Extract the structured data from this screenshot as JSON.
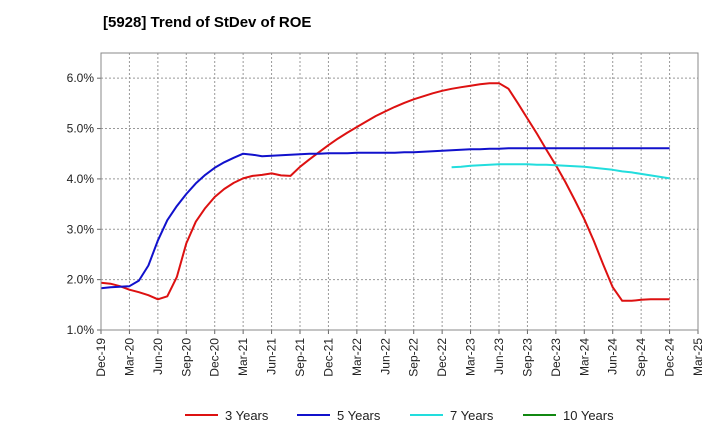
{
  "chart_data": {
    "type": "line",
    "title": "[5928]  Trend of StDev of ROE",
    "xlabel": "",
    "ylabel": "",
    "x_ticks": [
      "Dec-19",
      "Mar-20",
      "Jun-20",
      "Sep-20",
      "Dec-20",
      "Mar-21",
      "Jun-21",
      "Sep-21",
      "Dec-21",
      "Mar-22",
      "Jun-22",
      "Sep-22",
      "Dec-22",
      "Mar-23",
      "Jun-23",
      "Sep-23",
      "Dec-23",
      "Mar-24",
      "Jun-24",
      "Sep-24",
      "Dec-24",
      "Mar-25"
    ],
    "y_ticks": [
      "1.0%",
      "2.0%",
      "3.0%",
      "4.0%",
      "5.0%",
      "6.0%"
    ],
    "ylim": [
      1.0,
      6.5
    ],
    "y_unit": "%",
    "grid": true,
    "legend_position": "bottom",
    "series": [
      {
        "name": "3 Years",
        "color": "#dd1111",
        "points": [
          [
            "Dec-19",
            1.94
          ],
          [
            "Jan-20",
            1.92
          ],
          [
            "Feb-20",
            1.87
          ],
          [
            "Mar-20",
            1.8
          ],
          [
            "Apr-20",
            1.75
          ],
          [
            "May-20",
            1.69
          ],
          [
            "Jun-20",
            1.61
          ],
          [
            "Jul-20",
            1.67
          ],
          [
            "Aug-20",
            2.05
          ],
          [
            "Sep-20",
            2.72
          ],
          [
            "Oct-20",
            3.15
          ],
          [
            "Nov-20",
            3.42
          ],
          [
            "Dec-20",
            3.64
          ],
          [
            "Jan-21",
            3.8
          ],
          [
            "Feb-21",
            3.92
          ],
          [
            "Mar-21",
            4.01
          ],
          [
            "Apr-21",
            4.06
          ],
          [
            "May-21",
            4.08
          ],
          [
            "Jun-21",
            4.11
          ],
          [
            "Jul-21",
            4.07
          ],
          [
            "Aug-21",
            4.06
          ],
          [
            "Sep-21",
            4.24
          ],
          [
            "Oct-21",
            4.39
          ],
          [
            "Nov-21",
            4.53
          ],
          [
            "Dec-21",
            4.67
          ],
          [
            "Jan-22",
            4.8
          ],
          [
            "Feb-22",
            4.92
          ],
          [
            "Mar-22",
            5.03
          ],
          [
            "Apr-22",
            5.14
          ],
          [
            "May-22",
            5.25
          ],
          [
            "Jun-22",
            5.34
          ],
          [
            "Jul-22",
            5.43
          ],
          [
            "Aug-22",
            5.51
          ],
          [
            "Sep-22",
            5.58
          ],
          [
            "Oct-22",
            5.64
          ],
          [
            "Nov-22",
            5.7
          ],
          [
            "Dec-22",
            5.75
          ],
          [
            "Jan-23",
            5.79
          ],
          [
            "Feb-23",
            5.82
          ],
          [
            "Mar-23",
            5.85
          ],
          [
            "Apr-23",
            5.88
          ],
          [
            "May-23",
            5.9
          ],
          [
            "Jun-23",
            5.9
          ],
          [
            "Jul-23",
            5.79
          ],
          [
            "Aug-23",
            5.5
          ],
          [
            "Sep-23",
            5.2
          ],
          [
            "Oct-23",
            4.9
          ],
          [
            "Nov-23",
            4.58
          ],
          [
            "Dec-23",
            4.27
          ],
          [
            "Jan-24",
            3.94
          ],
          [
            "Feb-24",
            3.58
          ],
          [
            "Mar-24",
            3.2
          ],
          [
            "Apr-24",
            2.77
          ],
          [
            "May-24",
            2.3
          ],
          [
            "Jun-24",
            1.85
          ],
          [
            "Jul-24",
            1.58
          ],
          [
            "Aug-24",
            1.58
          ],
          [
            "Sep-24",
            1.6
          ],
          [
            "Oct-24",
            1.61
          ],
          [
            "Nov-24",
            1.61
          ],
          [
            "Dec-24",
            1.61
          ]
        ]
      },
      {
        "name": "5 Years",
        "color": "#1111cc",
        "points": [
          [
            "Dec-19",
            1.83
          ],
          [
            "Jan-20",
            1.85
          ],
          [
            "Feb-20",
            1.86
          ],
          [
            "Mar-20",
            1.87
          ],
          [
            "Apr-20",
            1.98
          ],
          [
            "May-20",
            2.28
          ],
          [
            "Jun-20",
            2.78
          ],
          [
            "Jul-20",
            3.18
          ],
          [
            "Aug-20",
            3.46
          ],
          [
            "Sep-20",
            3.7
          ],
          [
            "Oct-20",
            3.91
          ],
          [
            "Nov-20",
            4.08
          ],
          [
            "Dec-20",
            4.22
          ],
          [
            "Jan-21",
            4.33
          ],
          [
            "Feb-21",
            4.42
          ],
          [
            "Mar-21",
            4.5
          ],
          [
            "Apr-21",
            4.48
          ],
          [
            "May-21",
            4.45
          ],
          [
            "Jun-21",
            4.46
          ],
          [
            "Jul-21",
            4.47
          ],
          [
            "Aug-21",
            4.48
          ],
          [
            "Sep-21",
            4.49
          ],
          [
            "Oct-21",
            4.5
          ],
          [
            "Nov-21",
            4.5
          ],
          [
            "Dec-21",
            4.51
          ],
          [
            "Jan-22",
            4.51
          ],
          [
            "Feb-22",
            4.51
          ],
          [
            "Mar-22",
            4.52
          ],
          [
            "Apr-22",
            4.52
          ],
          [
            "May-22",
            4.52
          ],
          [
            "Jun-22",
            4.52
          ],
          [
            "Jul-22",
            4.52
          ],
          [
            "Aug-22",
            4.53
          ],
          [
            "Sep-22",
            4.53
          ],
          [
            "Oct-22",
            4.54
          ],
          [
            "Nov-22",
            4.55
          ],
          [
            "Dec-22",
            4.56
          ],
          [
            "Jan-23",
            4.57
          ],
          [
            "Feb-23",
            4.58
          ],
          [
            "Mar-23",
            4.59
          ],
          [
            "Apr-23",
            4.59
          ],
          [
            "May-23",
            4.6
          ],
          [
            "Jun-23",
            4.6
          ],
          [
            "Jul-23",
            4.61
          ],
          [
            "Aug-23",
            4.61
          ],
          [
            "Sep-23",
            4.61
          ],
          [
            "Oct-23",
            4.61
          ],
          [
            "Nov-23",
            4.61
          ],
          [
            "Dec-23",
            4.61
          ],
          [
            "Jan-24",
            4.61
          ],
          [
            "Feb-24",
            4.61
          ],
          [
            "Mar-24",
            4.61
          ],
          [
            "Apr-24",
            4.61
          ],
          [
            "May-24",
            4.61
          ],
          [
            "Jun-24",
            4.61
          ],
          [
            "Jul-24",
            4.61
          ],
          [
            "Aug-24",
            4.61
          ],
          [
            "Sep-24",
            4.61
          ],
          [
            "Oct-24",
            4.61
          ],
          [
            "Nov-24",
            4.61
          ],
          [
            "Dec-24",
            4.61
          ]
        ]
      },
      {
        "name": "7 Years",
        "color": "#22dddd",
        "points": [
          [
            "Jan-23",
            4.23
          ],
          [
            "Feb-23",
            4.24
          ],
          [
            "Mar-23",
            4.26
          ],
          [
            "Apr-23",
            4.27
          ],
          [
            "May-23",
            4.28
          ],
          [
            "Jun-23",
            4.29
          ],
          [
            "Jul-23",
            4.29
          ],
          [
            "Aug-23",
            4.29
          ],
          [
            "Sep-23",
            4.29
          ],
          [
            "Oct-23",
            4.28
          ],
          [
            "Nov-23",
            4.28
          ],
          [
            "Dec-23",
            4.27
          ],
          [
            "Jan-24",
            4.26
          ],
          [
            "Feb-24",
            4.25
          ],
          [
            "Mar-24",
            4.24
          ],
          [
            "Apr-24",
            4.22
          ],
          [
            "May-24",
            4.2
          ],
          [
            "Jun-24",
            4.18
          ],
          [
            "Jul-24",
            4.15
          ],
          [
            "Aug-24",
            4.13
          ],
          [
            "Sep-24",
            4.1
          ],
          [
            "Oct-24",
            4.07
          ],
          [
            "Nov-24",
            4.04
          ],
          [
            "Dec-24",
            4.01
          ]
        ]
      },
      {
        "name": "10 Years",
        "color": "#118811",
        "points": []
      }
    ]
  }
}
